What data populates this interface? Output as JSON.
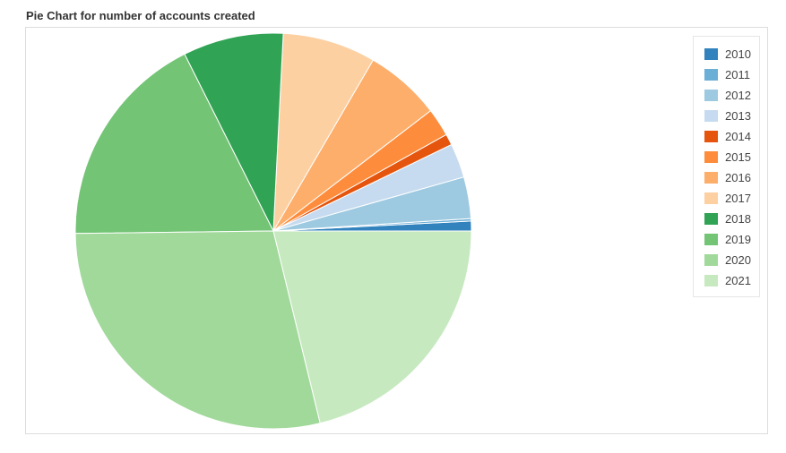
{
  "title": "Pie Chart for number of accounts created",
  "chart_data": {
    "type": "pie",
    "title": "Pie Chart for number of accounts created",
    "legend_position": "top-right",
    "slices": [
      {
        "label": "2010",
        "value": 0.8,
        "color": "#3182bd"
      },
      {
        "label": "2011",
        "value": 0.2,
        "color": "#6baed6"
      },
      {
        "label": "2012",
        "value": 3.4,
        "color": "#9ecae1"
      },
      {
        "label": "2013",
        "value": 2.8,
        "color": "#c6dbef"
      },
      {
        "label": "2014",
        "value": 0.9,
        "color": "#e6550d"
      },
      {
        "label": "2015",
        "value": 2.3,
        "color": "#fd8d3c"
      },
      {
        "label": "2016",
        "value": 6.2,
        "color": "#fdae6b"
      },
      {
        "label": "2017",
        "value": 7.6,
        "color": "#fdd0a2"
      },
      {
        "label": "2018",
        "value": 8.2,
        "color": "#31a354"
      },
      {
        "label": "2019",
        "value": 17.8,
        "color": "#74c476"
      },
      {
        "label": "2020",
        "value": 28.6,
        "color": "#a1d99b"
      },
      {
        "label": "2021",
        "value": 21.2,
        "color": "#c7e9c0"
      }
    ]
  }
}
